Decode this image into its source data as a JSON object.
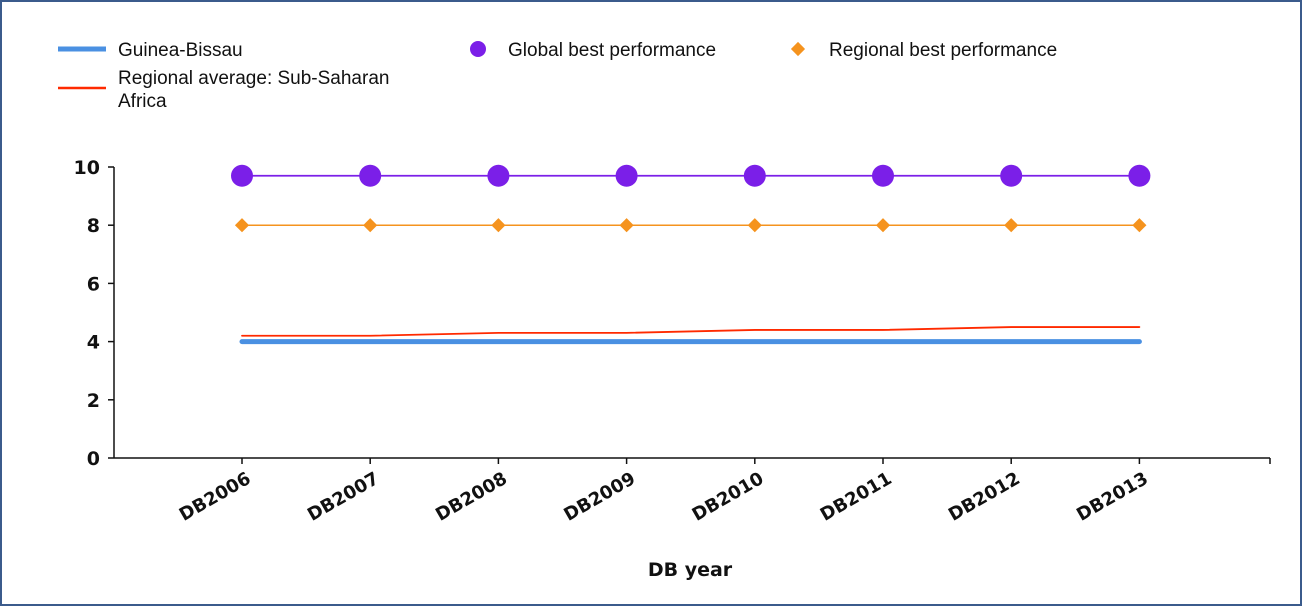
{
  "chart_data": {
    "type": "line",
    "title": "",
    "xlabel": "DB year",
    "ylabel": "",
    "categories": [
      "DB2006",
      "DB2007",
      "DB2008",
      "DB2009",
      "DB2010",
      "DB2011",
      "DB2012",
      "DB2013"
    ],
    "ylim": [
      0,
      10
    ],
    "yticks": [
      "0",
      "2",
      "4",
      "6",
      "8",
      "10"
    ],
    "legend_position": "top",
    "grid": false,
    "series": [
      {
        "name": "Guinea-Bissau",
        "values": [
          4,
          4,
          4,
          4,
          4,
          4,
          4,
          4
        ],
        "color": "#4a90e2",
        "marker": "none"
      },
      {
        "name": "Regional average: Sub-Saharan Africa",
        "values": [
          4.2,
          4.2,
          4.3,
          4.3,
          4.4,
          4.4,
          4.5,
          4.5
        ],
        "color": "#ff2a00",
        "marker": "none"
      },
      {
        "name": "Global best performance",
        "values": [
          9.7,
          9.7,
          9.7,
          9.7,
          9.7,
          9.7,
          9.7,
          9.7
        ],
        "color": "#7b1fe8",
        "marker": "circle"
      },
      {
        "name": "Regional best performance",
        "values": [
          8,
          8,
          8,
          8,
          8,
          8,
          8,
          8
        ],
        "color": "#f5931e",
        "marker": "diamond"
      }
    ]
  },
  "legend": {
    "guinea_bissau": "Guinea-Bissau",
    "regional_average_line1": "Regional average: Sub-Saharan",
    "regional_average_line2": "Africa",
    "global_best": "Global best performance",
    "regional_best": "Regional best performance"
  }
}
